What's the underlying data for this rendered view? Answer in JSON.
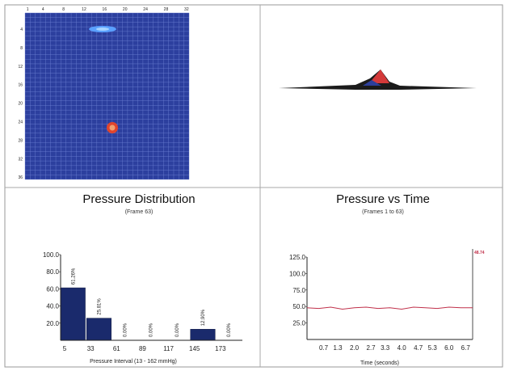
{
  "heatmap": {
    "col_ticks": [
      "1",
      "4",
      "8",
      "12",
      "16",
      "20",
      "24",
      "28",
      "32"
    ],
    "row_ticks": [
      "4",
      "8",
      "12",
      "16",
      "20",
      "24",
      "28",
      "32",
      "36"
    ],
    "colors": {
      "background": "#2c3f9e",
      "grid": "#6f83d4",
      "hot": "#e0442c",
      "warm": "#5aa0ff"
    }
  },
  "chart_data": [
    {
      "type": "bar",
      "title": "Pressure Distribution",
      "subtitle": "(Frame 63)",
      "xlabel": "Pressure Interval (13 - 162 mmHg)",
      "ylabel": "",
      "categories": [
        "5",
        "33",
        "61",
        "89",
        "117",
        "145",
        "173"
      ],
      "values": [
        61.26,
        25.81,
        0.0,
        0.0,
        0.0,
        12.9,
        0.0
      ],
      "data_labels": [
        "61.26%",
        "25.81%",
        "0.00%",
        "0.00%",
        "0.00%",
        "12.90%",
        "0.00%"
      ],
      "y_ticks": [
        "100.0",
        "80.0",
        "60.0",
        "40.0",
        "20.0"
      ],
      "ylim": [
        0,
        100
      ],
      "bar_color": "#1a2a6c"
    },
    {
      "type": "line",
      "title": "Pressure vs Time",
      "subtitle": "(Frames 1 to 63)",
      "xlabel": "Time (seconds)",
      "ylabel": "",
      "x_ticks": [
        "0.7",
        "1.3",
        "2.0",
        "2.7",
        "3.3",
        "4.0",
        "4.7",
        "5.3",
        "6.0",
        "6.7"
      ],
      "y_ticks": [
        "125.0",
        "100.0",
        "75.0",
        "50.0",
        "25.0"
      ],
      "ylim": [
        0,
        125
      ],
      "xlim": [
        0,
        7.0
      ],
      "current_value_label": "48.74",
      "series": [
        {
          "color": "#c0304a",
          "x": [
            0.0,
            0.5,
            1.0,
            1.5,
            2.0,
            2.5,
            3.0,
            3.5,
            4.0,
            4.5,
            5.0,
            5.5,
            6.0,
            6.5,
            7.0
          ],
          "y": [
            48,
            47,
            49,
            46,
            48,
            49,
            47,
            48,
            46,
            49,
            48,
            47,
            49,
            48,
            48
          ]
        }
      ]
    }
  ]
}
